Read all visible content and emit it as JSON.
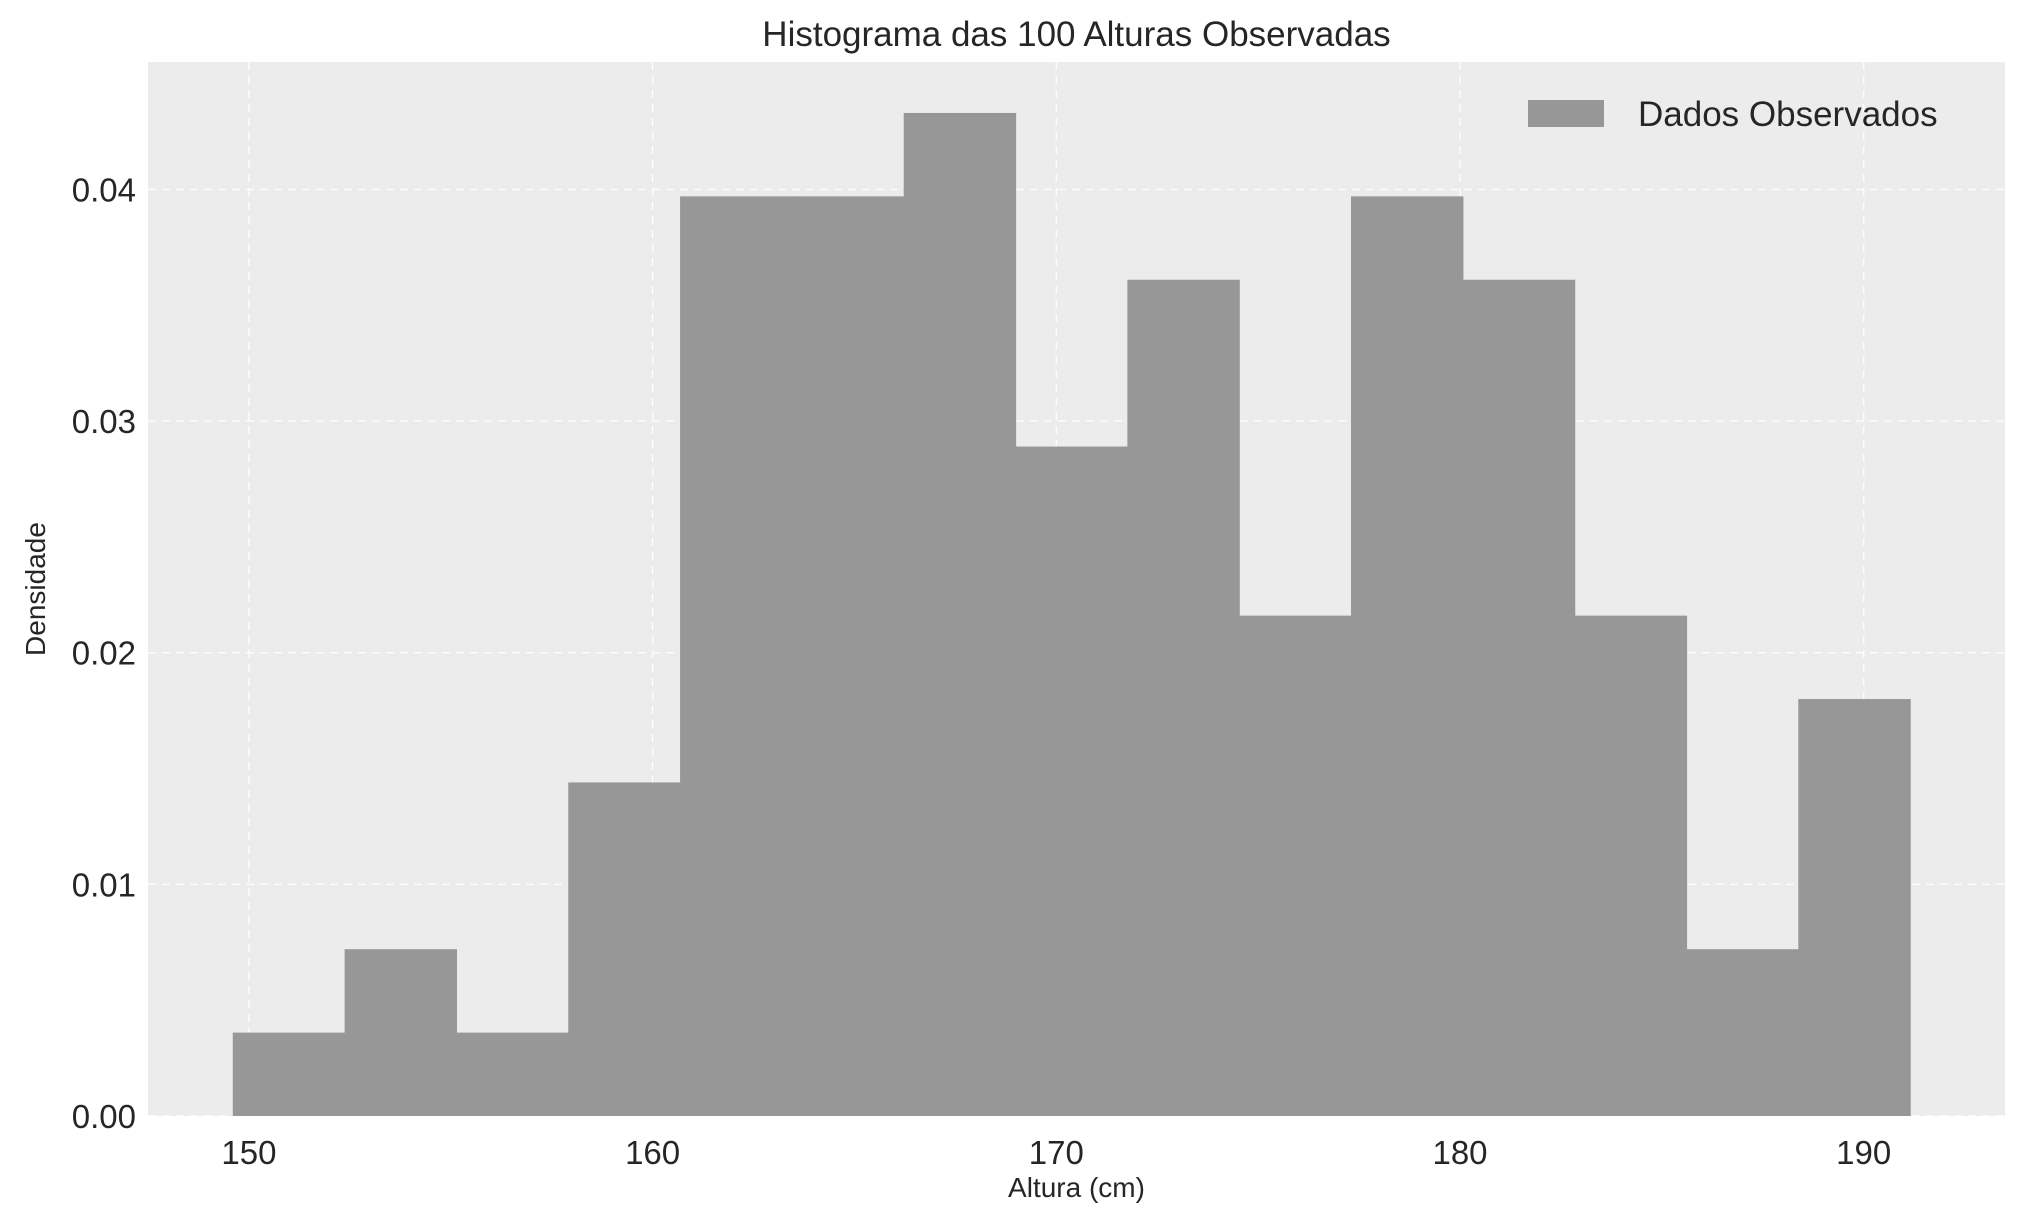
{
  "chart_data": {
    "type": "bar",
    "title": "Histograma das 100 Alturas Observadas",
    "xlabel": "Altura (cm)",
    "ylabel": "Densidade",
    "xlim": [
      147.5,
      193.5
    ],
    "ylim": [
      0,
      0.0455
    ],
    "xticks": [
      150,
      160,
      170,
      180,
      190
    ],
    "xtick_labels": [
      "150",
      "160",
      "170",
      "180",
      "190"
    ],
    "yticks": [
      0,
      0.01,
      0.02,
      0.03,
      0.04
    ],
    "ytick_labels": [
      "0.00",
      "0.01",
      "0.02",
      "0.03",
      "0.04"
    ],
    "grid": true,
    "legend_position": "top-right",
    "series": [
      {
        "name": "Dados Observados",
        "color": "#979797",
        "bin_edges": [
          149.6,
          152.37,
          155.14,
          157.91,
          160.68,
          163.45,
          166.22,
          168.99,
          171.76,
          174.53,
          177.3,
          180.07,
          182.84,
          185.61,
          188.38,
          191.15
        ],
        "values": [
          0.0036,
          0.0072,
          0.0036,
          0.0144,
          0.0397,
          0.0397,
          0.0433,
          0.0289,
          0.0361,
          0.0216,
          0.0397,
          0.0361,
          0.0216,
          0.0072,
          0.018
        ]
      }
    ]
  },
  "colors": {
    "plot_background": "#ececec",
    "bar": "#979797",
    "grid": "#ffffff"
  }
}
